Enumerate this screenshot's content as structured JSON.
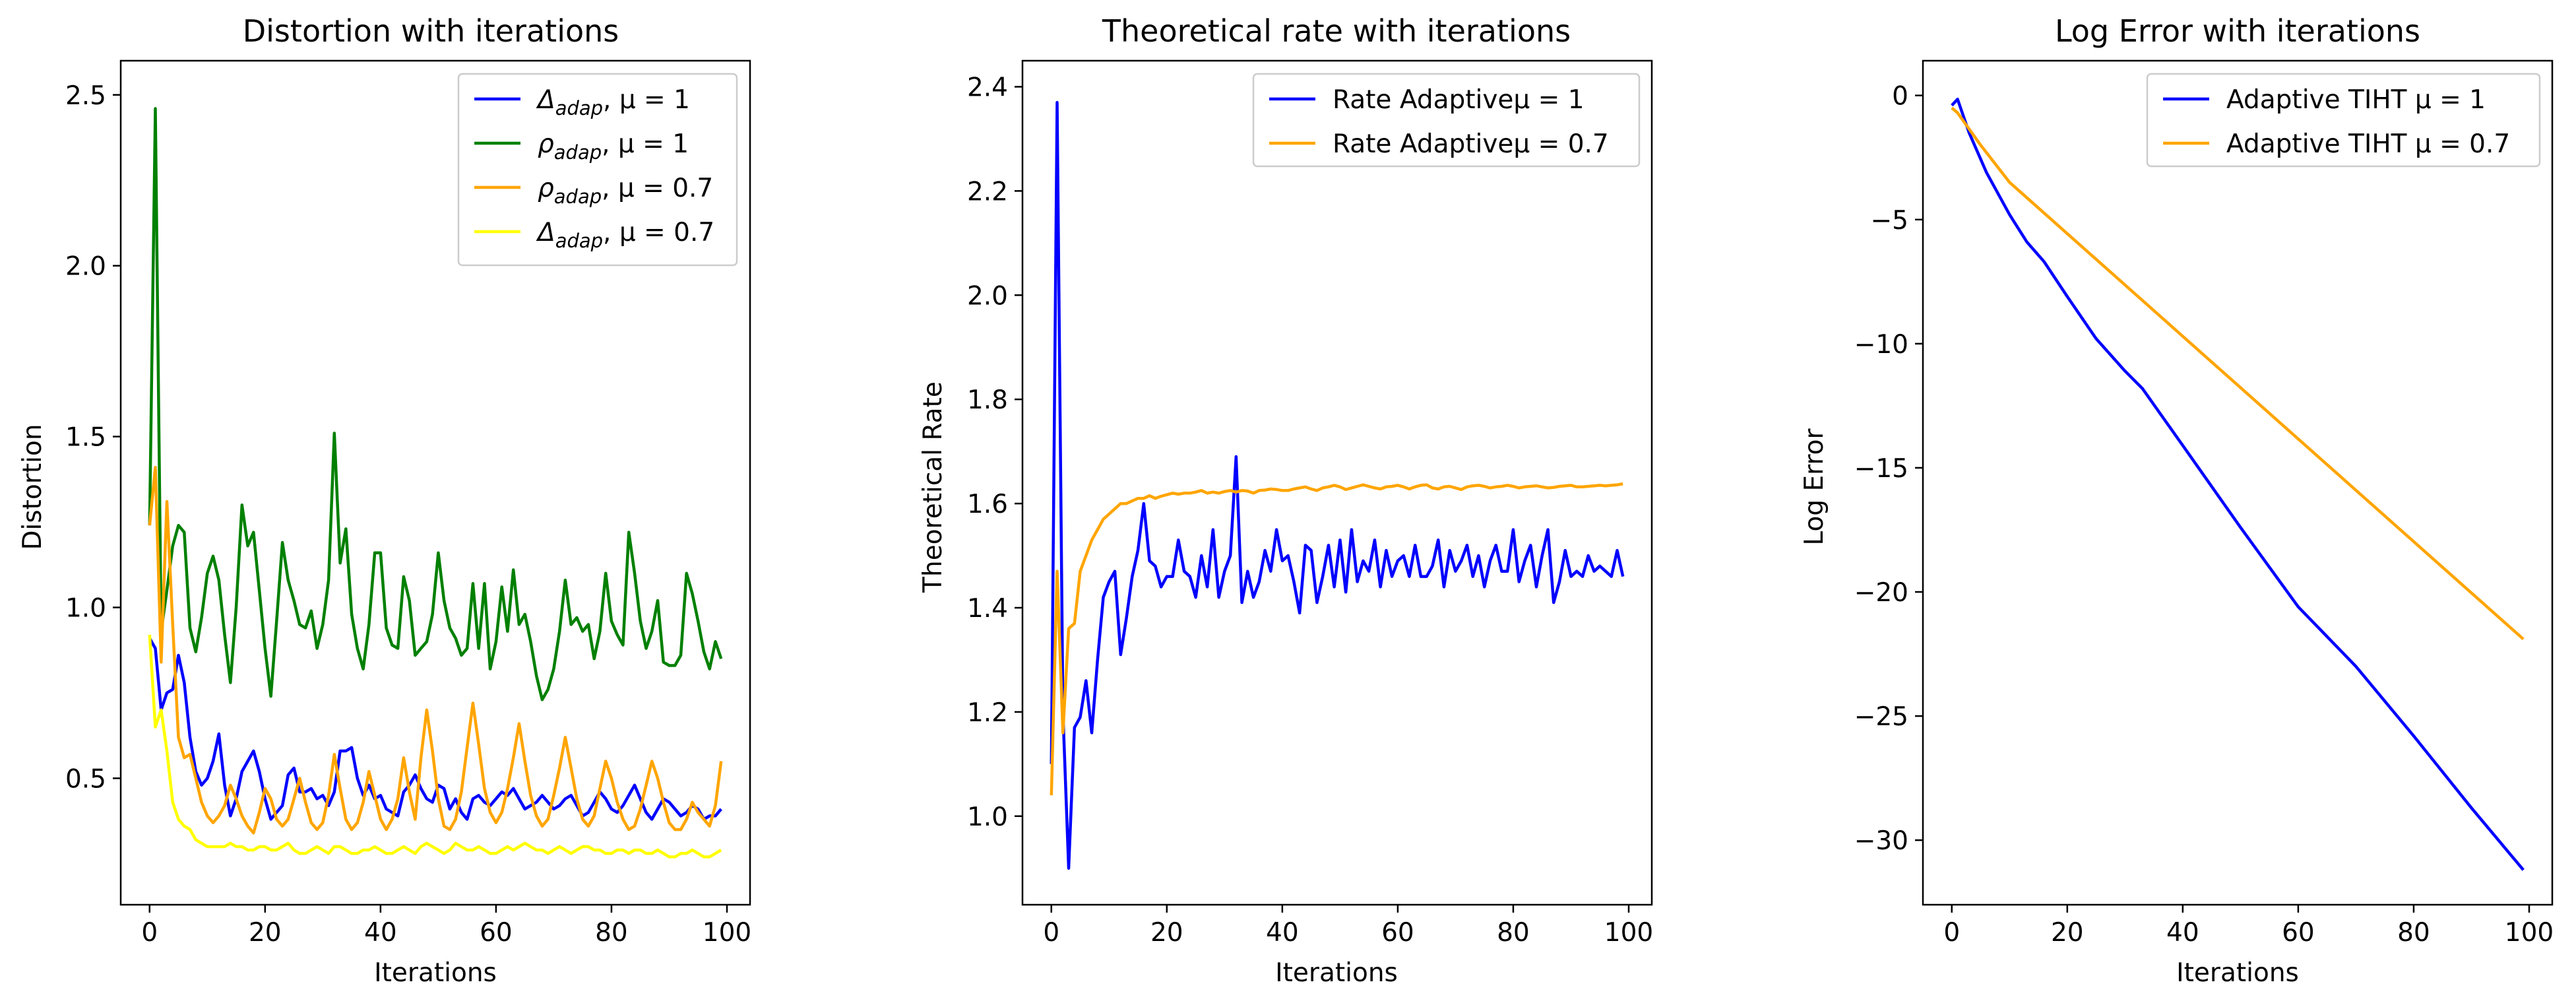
{
  "chart_data": [
    {
      "type": "line",
      "title": "Distortion with iterations",
      "xlabel": "Iterations",
      "ylabel": "Distortion",
      "xlim": [
        -5,
        104
      ],
      "ylim": [
        0.13,
        2.6
      ],
      "xticks": [
        0,
        20,
        40,
        60,
        80,
        100
      ],
      "yticks": [
        0.5,
        1.0,
        1.5,
        2.0,
        2.5
      ],
      "ytick_labels": [
        "0.5",
        "1.0",
        "1.5",
        "2.0",
        "2.5"
      ],
      "legend_position": "top-right",
      "grid": false,
      "series": [
        {
          "name": "Δ_adap, μ = 1",
          "color": "#0000ff",
          "legend_label": {
            "base": "Δ",
            "sub": "adap",
            "rest": ",  μ = 1"
          },
          "values": [
            0.91,
            0.88,
            0.7,
            0.75,
            0.76,
            0.86,
            0.78,
            0.62,
            0.52,
            0.48,
            0.5,
            0.55,
            0.63,
            0.48,
            0.39,
            0.44,
            0.52,
            0.55,
            0.58,
            0.52,
            0.44,
            0.38,
            0.4,
            0.42,
            0.51,
            0.53,
            0.46,
            0.46,
            0.47,
            0.44,
            0.45,
            0.42,
            0.46,
            0.58,
            0.58,
            0.59,
            0.5,
            0.45,
            0.48,
            0.44,
            0.45,
            0.41,
            0.4,
            0.39,
            0.46,
            0.48,
            0.51,
            0.47,
            0.44,
            0.43,
            0.48,
            0.47,
            0.41,
            0.44,
            0.4,
            0.38,
            0.44,
            0.45,
            0.43,
            0.42,
            0.44,
            0.46,
            0.45,
            0.47,
            0.44,
            0.41,
            0.42,
            0.43,
            0.45,
            0.43,
            0.41,
            0.42,
            0.44,
            0.45,
            0.42,
            0.39,
            0.4,
            0.43,
            0.46,
            0.44,
            0.41,
            0.4,
            0.42,
            0.45,
            0.48,
            0.44,
            0.4,
            0.38,
            0.41,
            0.44,
            0.43,
            0.41,
            0.39,
            0.4,
            0.42,
            0.41,
            0.38,
            0.39,
            0.39,
            0.41
          ]
        },
        {
          "name": "ρ_adap, μ = 1",
          "color": "#008000",
          "legend_label": {
            "base": "ρ",
            "sub": "adap",
            "rest": ",  μ = 1"
          },
          "values": [
            1.24,
            2.46,
            0.93,
            1.05,
            1.18,
            1.24,
            1.22,
            0.94,
            0.87,
            0.97,
            1.1,
            1.15,
            1.08,
            0.92,
            0.78,
            1.0,
            1.3,
            1.18,
            1.22,
            1.05,
            0.88,
            0.74,
            0.96,
            1.19,
            1.08,
            1.02,
            0.95,
            0.94,
            0.99,
            0.88,
            0.95,
            1.08,
            1.51,
            1.13,
            1.23,
            0.98,
            0.88,
            0.82,
            0.95,
            1.16,
            1.16,
            0.94,
            0.89,
            0.88,
            1.09,
            1.02,
            0.86,
            0.88,
            0.9,
            0.98,
            1.16,
            1.02,
            0.94,
            0.91,
            0.86,
            0.88,
            1.07,
            0.88,
            1.07,
            0.82,
            0.9,
            1.06,
            0.93,
            1.11,
            0.95,
            0.98,
            0.9,
            0.8,
            0.73,
            0.76,
            0.82,
            0.93,
            1.08,
            0.95,
            0.97,
            0.93,
            0.95,
            0.85,
            0.93,
            1.1,
            0.96,
            0.92,
            0.89,
            1.22,
            1.1,
            0.96,
            0.88,
            0.93,
            1.02,
            0.84,
            0.83,
            0.83,
            0.86,
            1.1,
            1.04,
            0.96,
            0.87,
            0.82,
            0.9,
            0.85
          ]
        },
        {
          "name": "ρ_adap, μ = 0.7",
          "color": "#ffa500",
          "legend_label": {
            "base": "ρ",
            "sub": "adap",
            "rest": ",  μ = 0.7"
          },
          "values": [
            1.24,
            1.41,
            0.84,
            1.31,
            0.95,
            0.62,
            0.56,
            0.57,
            0.5,
            0.43,
            0.39,
            0.37,
            0.39,
            0.42,
            0.48,
            0.44,
            0.39,
            0.36,
            0.34,
            0.4,
            0.47,
            0.44,
            0.38,
            0.36,
            0.38,
            0.44,
            0.5,
            0.43,
            0.37,
            0.35,
            0.37,
            0.45,
            0.57,
            0.47,
            0.38,
            0.35,
            0.37,
            0.43,
            0.52,
            0.45,
            0.38,
            0.35,
            0.38,
            0.44,
            0.56,
            0.46,
            0.38,
            0.56,
            0.7,
            0.58,
            0.44,
            0.36,
            0.35,
            0.38,
            0.46,
            0.59,
            0.72,
            0.6,
            0.47,
            0.4,
            0.37,
            0.4,
            0.47,
            0.56,
            0.66,
            0.55,
            0.45,
            0.39,
            0.36,
            0.38,
            0.45,
            0.53,
            0.62,
            0.53,
            0.44,
            0.38,
            0.36,
            0.39,
            0.47,
            0.55,
            0.5,
            0.43,
            0.38,
            0.35,
            0.36,
            0.41,
            0.48,
            0.55,
            0.5,
            0.43,
            0.37,
            0.35,
            0.35,
            0.38,
            0.43,
            0.4,
            0.38,
            0.36,
            0.42,
            0.55
          ]
        },
        {
          "name": "Δ_adap, μ = 0.7",
          "color": "#ffff00",
          "legend_label": {
            "base": "Δ",
            "sub": "adap",
            "rest": ",  μ = 0.7"
          },
          "values": [
            0.92,
            0.65,
            0.7,
            0.58,
            0.43,
            0.38,
            0.36,
            0.35,
            0.32,
            0.31,
            0.3,
            0.3,
            0.3,
            0.3,
            0.31,
            0.3,
            0.3,
            0.29,
            0.29,
            0.3,
            0.3,
            0.29,
            0.29,
            0.3,
            0.31,
            0.29,
            0.28,
            0.28,
            0.29,
            0.3,
            0.29,
            0.28,
            0.3,
            0.3,
            0.29,
            0.28,
            0.28,
            0.29,
            0.29,
            0.3,
            0.29,
            0.28,
            0.28,
            0.29,
            0.3,
            0.29,
            0.28,
            0.3,
            0.31,
            0.3,
            0.29,
            0.28,
            0.29,
            0.31,
            0.3,
            0.29,
            0.29,
            0.3,
            0.29,
            0.28,
            0.28,
            0.29,
            0.3,
            0.29,
            0.3,
            0.31,
            0.3,
            0.29,
            0.29,
            0.28,
            0.29,
            0.3,
            0.29,
            0.28,
            0.29,
            0.3,
            0.3,
            0.29,
            0.29,
            0.28,
            0.28,
            0.29,
            0.29,
            0.28,
            0.29,
            0.29,
            0.28,
            0.28,
            0.29,
            0.28,
            0.27,
            0.27,
            0.28,
            0.28,
            0.29,
            0.28,
            0.27,
            0.27,
            0.28,
            0.29
          ]
        }
      ]
    },
    {
      "type": "line",
      "title": "Theoretical rate with iterations",
      "xlabel": "Iterations",
      "ylabel": "Theoretical Rate",
      "xlim": [
        -5,
        104
      ],
      "ylim": [
        0.83,
        2.45
      ],
      "xticks": [
        0,
        20,
        40,
        60,
        80,
        100
      ],
      "yticks": [
        1.0,
        1.2,
        1.4,
        1.6,
        1.8,
        2.0,
        2.2,
        2.4
      ],
      "ytick_labels": [
        "1.0",
        "1.2",
        "1.4",
        "1.6",
        "1.8",
        "2.0",
        "2.2",
        "2.4"
      ],
      "legend_position": "top-right",
      "grid": false,
      "series": [
        {
          "name": "Rate Adaptiveμ = 1",
          "color": "#0000ff",
          "legend_label": "Rate Adaptiveμ = 1",
          "values": [
            1.1,
            2.37,
            1.2,
            0.9,
            1.17,
            1.19,
            1.26,
            1.16,
            1.3,
            1.42,
            1.45,
            1.47,
            1.31,
            1.38,
            1.46,
            1.51,
            1.6,
            1.49,
            1.48,
            1.44,
            1.46,
            1.46,
            1.53,
            1.47,
            1.46,
            1.42,
            1.5,
            1.44,
            1.55,
            1.42,
            1.47,
            1.5,
            1.69,
            1.41,
            1.47,
            1.42,
            1.45,
            1.51,
            1.47,
            1.55,
            1.49,
            1.5,
            1.45,
            1.39,
            1.52,
            1.51,
            1.41,
            1.46,
            1.52,
            1.44,
            1.53,
            1.43,
            1.55,
            1.45,
            1.49,
            1.47,
            1.53,
            1.44,
            1.51,
            1.46,
            1.49,
            1.5,
            1.46,
            1.52,
            1.46,
            1.46,
            1.48,
            1.53,
            1.44,
            1.51,
            1.47,
            1.49,
            1.52,
            1.46,
            1.5,
            1.44,
            1.49,
            1.52,
            1.47,
            1.47,
            1.55,
            1.45,
            1.49,
            1.52,
            1.44,
            1.5,
            1.55,
            1.41,
            1.45,
            1.51,
            1.46,
            1.47,
            1.46,
            1.5,
            1.47,
            1.48,
            1.47,
            1.46,
            1.51,
            1.46
          ]
        },
        {
          "name": "Rate Adaptiveμ = 0.7",
          "color": "#ffa500",
          "legend_label": "Rate Adaptiveμ = 0.7",
          "values": [
            1.04,
            1.47,
            1.16,
            1.36,
            1.37,
            1.47,
            1.5,
            1.53,
            1.55,
            1.57,
            1.58,
            1.59,
            1.6,
            1.6,
            1.605,
            1.61,
            1.61,
            1.615,
            1.61,
            1.614,
            1.617,
            1.62,
            1.618,
            1.62,
            1.62,
            1.622,
            1.625,
            1.62,
            1.622,
            1.62,
            1.623,
            1.625,
            1.622,
            1.625,
            1.624,
            1.62,
            1.625,
            1.626,
            1.628,
            1.627,
            1.625,
            1.625,
            1.628,
            1.63,
            1.632,
            1.628,
            1.625,
            1.63,
            1.632,
            1.635,
            1.632,
            1.627,
            1.63,
            1.633,
            1.636,
            1.633,
            1.63,
            1.628,
            1.632,
            1.633,
            1.635,
            1.632,
            1.628,
            1.632,
            1.635,
            1.636,
            1.63,
            1.628,
            1.632,
            1.633,
            1.63,
            1.627,
            1.632,
            1.634,
            1.635,
            1.633,
            1.63,
            1.632,
            1.633,
            1.635,
            1.633,
            1.63,
            1.632,
            1.633,
            1.634,
            1.632,
            1.63,
            1.631,
            1.633,
            1.634,
            1.635,
            1.632,
            1.632,
            1.633,
            1.634,
            1.635,
            1.634,
            1.635,
            1.636,
            1.638
          ]
        }
      ]
    },
    {
      "type": "line",
      "title": "Log Error with iterations",
      "xlabel": "Iterations",
      "ylabel": "Log Error",
      "xlim": [
        -5,
        104
      ],
      "ylim": [
        -32.6,
        1.4
      ],
      "xticks": [
        0,
        20,
        40,
        60,
        80,
        100
      ],
      "yticks": [
        0,
        -5,
        -10,
        -15,
        -20,
        -25,
        -30
      ],
      "ytick_labels": [
        "0",
        "−5",
        "−10",
        "−15",
        "−20",
        "−25",
        "−30"
      ],
      "legend_position": "top-right",
      "grid": false,
      "series": [
        {
          "name": "Adaptive TIHT μ = 1",
          "color": "#0000ff",
          "legend_label": "Adaptive TIHT μ = 1",
          "x_points": [
            0,
            1,
            3,
            6,
            10,
            13,
            16,
            20,
            25,
            30,
            33,
            40,
            50,
            60,
            70,
            80,
            90,
            99
          ],
          "values": [
            -0.4,
            -0.15,
            -1.5,
            -3.1,
            -4.8,
            -5.9,
            -6.7,
            -8.1,
            -9.8,
            -11.1,
            -11.8,
            -14.1,
            -17.4,
            -20.6,
            -23.0,
            -25.8,
            -28.7,
            -31.2
          ]
        },
        {
          "name": "Adaptive TIHT μ = 0.7",
          "color": "#ffa500",
          "legend_label": "Adaptive TIHT μ = 0.7",
          "x_points": [
            0,
            1,
            5,
            10,
            99
          ],
          "values": [
            -0.5,
            -0.7,
            -2.0,
            -3.5,
            -21.9
          ]
        }
      ]
    }
  ]
}
